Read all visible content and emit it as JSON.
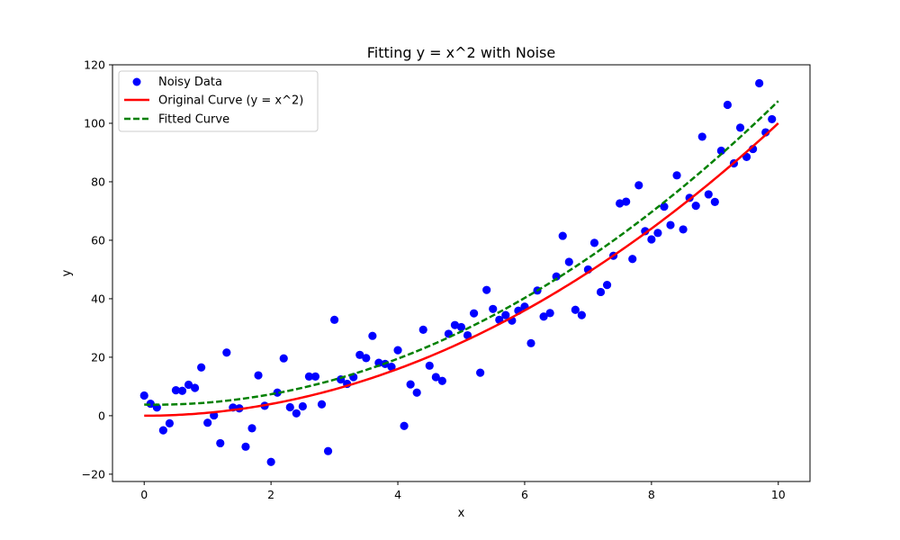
{
  "chart_data": {
    "type": "scatter",
    "title": "Fitting y = x^2 with Noise",
    "xlabel": "x",
    "ylabel": "y",
    "xlim": [
      -0.5,
      10.5
    ],
    "ylim": [
      -22.5,
      120
    ],
    "x_ticks": [
      0,
      2,
      4,
      6,
      8,
      10
    ],
    "x_tick_labels": [
      "0",
      "2",
      "4",
      "6",
      "8",
      "10"
    ],
    "y_ticks": [
      -20,
      0,
      20,
      40,
      60,
      80,
      100,
      120
    ],
    "y_tick_labels": [
      "−20",
      "0",
      "20",
      "40",
      "60",
      "80",
      "100",
      "120"
    ],
    "grid": false,
    "legend_placement": "upper-left",
    "series": [
      {
        "name": "Noisy Data",
        "kind": "scatter",
        "color": "#0000ff",
        "points": [
          [
            0.0,
            6.9
          ],
          [
            0.1,
            4.1
          ],
          [
            0.2,
            2.8
          ],
          [
            0.3,
            -5.0
          ],
          [
            0.4,
            -2.6
          ],
          [
            0.5,
            8.7
          ],
          [
            0.6,
            8.5
          ],
          [
            0.7,
            10.6
          ],
          [
            0.8,
            9.5
          ],
          [
            0.9,
            16.5
          ],
          [
            1.0,
            -2.4
          ],
          [
            1.1,
            0.1
          ],
          [
            1.2,
            -9.4
          ],
          [
            1.3,
            21.6
          ],
          [
            1.4,
            2.8
          ],
          [
            1.5,
            2.5
          ],
          [
            1.6,
            -10.6
          ],
          [
            1.7,
            -4.3
          ],
          [
            1.8,
            13.8
          ],
          [
            1.9,
            3.4
          ],
          [
            2.0,
            -15.8
          ],
          [
            2.1,
            7.9
          ],
          [
            2.2,
            19.6
          ],
          [
            2.3,
            2.9
          ],
          [
            2.4,
            0.8
          ],
          [
            2.5,
            3.2
          ],
          [
            2.6,
            13.4
          ],
          [
            2.7,
            13.4
          ],
          [
            2.8,
            3.9
          ],
          [
            2.9,
            -12.1
          ],
          [
            3.0,
            32.8
          ],
          [
            3.1,
            12.4
          ],
          [
            3.2,
            10.9
          ],
          [
            3.3,
            13.2
          ],
          [
            3.4,
            20.8
          ],
          [
            3.5,
            19.7
          ],
          [
            3.6,
            27.3
          ],
          [
            3.7,
            18.1
          ],
          [
            3.8,
            17.7
          ],
          [
            3.9,
            16.7
          ],
          [
            4.0,
            22.4
          ],
          [
            4.1,
            -3.5
          ],
          [
            4.2,
            10.7
          ],
          [
            4.3,
            7.9
          ],
          [
            4.4,
            29.4
          ],
          [
            4.5,
            17.1
          ],
          [
            4.6,
            13.2
          ],
          [
            4.7,
            11.9
          ],
          [
            4.8,
            28.0
          ],
          [
            4.9,
            31.0
          ],
          [
            5.0,
            30.3
          ],
          [
            5.1,
            27.5
          ],
          [
            5.2,
            35.0
          ],
          [
            5.3,
            14.7
          ],
          [
            5.4,
            43.0
          ],
          [
            5.5,
            36.5
          ],
          [
            5.6,
            32.8
          ],
          [
            5.7,
            34.4
          ],
          [
            5.8,
            32.5
          ],
          [
            5.9,
            35.9
          ],
          [
            6.0,
            37.3
          ],
          [
            6.1,
            24.8
          ],
          [
            6.2,
            42.8
          ],
          [
            6.3,
            33.9
          ],
          [
            6.4,
            35.1
          ],
          [
            6.5,
            47.6
          ],
          [
            6.6,
            61.5
          ],
          [
            6.7,
            52.6
          ],
          [
            6.8,
            36.2
          ],
          [
            6.9,
            34.4
          ],
          [
            7.0,
            50.0
          ],
          [
            7.1,
            59.1
          ],
          [
            7.2,
            42.3
          ],
          [
            7.3,
            44.7
          ],
          [
            7.4,
            54.7
          ],
          [
            7.5,
            72.6
          ],
          [
            7.6,
            73.2
          ],
          [
            7.7,
            53.6
          ],
          [
            7.8,
            78.8
          ],
          [
            7.9,
            63.1
          ],
          [
            8.0,
            60.3
          ],
          [
            8.1,
            62.5
          ],
          [
            8.2,
            71.5
          ],
          [
            8.3,
            65.2
          ],
          [
            8.4,
            82.2
          ],
          [
            8.5,
            63.7
          ],
          [
            8.6,
            74.5
          ],
          [
            8.7,
            71.8
          ],
          [
            8.8,
            95.4
          ],
          [
            8.9,
            75.7
          ],
          [
            9.0,
            73.1
          ],
          [
            9.1,
            90.6
          ],
          [
            9.2,
            106.3
          ],
          [
            9.3,
            86.3
          ],
          [
            9.4,
            98.5
          ],
          [
            9.5,
            88.5
          ],
          [
            9.6,
            91.2
          ],
          [
            9.7,
            113.7
          ],
          [
            9.8,
            96.9
          ],
          [
            9.9,
            101.4
          ]
        ]
      },
      {
        "name": "Original Curve (y = x^2)",
        "kind": "line",
        "color": "#ff0000",
        "dash": "solid",
        "function": "x^2",
        "x_range": [
          0,
          10
        ]
      },
      {
        "name": "Fitted Curve",
        "kind": "line",
        "color": "#008000",
        "dash": "dashed",
        "function": "1.076*x^2 - 0.38*x + 3.8",
        "coefficients": [
          1.076,
          -0.38,
          3.8
        ],
        "x_range": [
          0,
          10
        ]
      }
    ]
  }
}
